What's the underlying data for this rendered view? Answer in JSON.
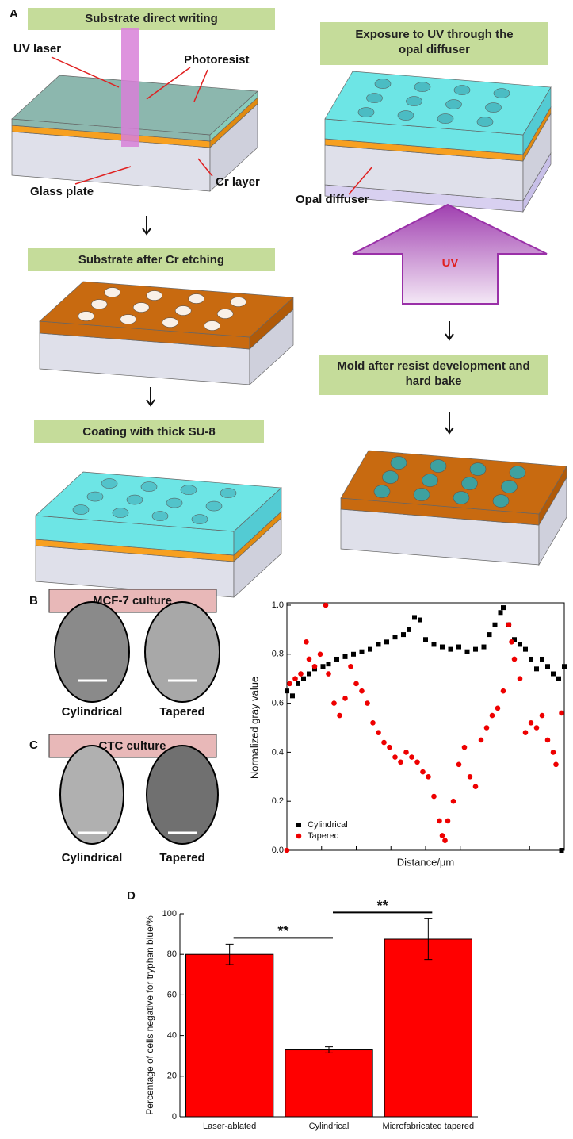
{
  "panel_labels": [
    "A",
    "B",
    "C",
    "D"
  ],
  "diagram": {
    "steps": [
      "Substrate direct writing",
      "Exposure to UV through the opal diffuser",
      "Substrate after Cr etching",
      "Mold after resist development and hard bake",
      "Coating with thick SU-8"
    ],
    "labels": {
      "uv_laser": "UV laser",
      "photoresist": "Photoresist",
      "glass_plate": "Glass plate",
      "cr_layer": "Cr layer",
      "opal_diffuser": "Opal diffuser",
      "uv": "UV"
    }
  },
  "micrographs": {
    "mcf7": "MCF-7 culture",
    "ctc": "CTC culture",
    "cylindrical": "Cylindrical",
    "tapered": "Tapered"
  },
  "chart_data": [
    {
      "type": "scatter",
      "xlabel": "Distance/μm",
      "ylabel": "Normalized gray value",
      "ylim": [
        0,
        1
      ],
      "xlim": [
        0,
        100
      ],
      "yticks": [
        {
          "value": 0,
          "label": "0.0"
        },
        {
          "value": 0.2,
          "label": "0.2"
        },
        {
          "value": 0.4,
          "label": "0.4"
        },
        {
          "value": 0.6,
          "label": "0.6"
        },
        {
          "value": 0.8,
          "label": "0.8"
        },
        {
          "value": 1,
          "label": "1.0"
        }
      ],
      "legend": "lower left",
      "series": [
        {
          "name": "Cylindrical",
          "color": "#000000",
          "marker": "square",
          "x": [
            0,
            2,
            4,
            6,
            8,
            10,
            13,
            15,
            18,
            21,
            24,
            27,
            30,
            33,
            36,
            39,
            42,
            44,
            46,
            48,
            50,
            53,
            56,
            59,
            62,
            65,
            68,
            71,
            73,
            75,
            77,
            78,
            80,
            82,
            84,
            86,
            88,
            90,
            92,
            94,
            96,
            98,
            99,
            100
          ],
          "values": [
            0.65,
            0.63,
            0.68,
            0.7,
            0.72,
            0.74,
            0.75,
            0.76,
            0.78,
            0.79,
            0.8,
            0.81,
            0.82,
            0.84,
            0.85,
            0.87,
            0.88,
            0.9,
            0.95,
            0.94,
            0.86,
            0.84,
            0.83,
            0.82,
            0.83,
            0.81,
            0.82,
            0.83,
            0.88,
            0.92,
            0.97,
            0.99,
            0.92,
            0.86,
            0.84,
            0.82,
            0.78,
            0.74,
            0.78,
            0.75,
            0.72,
            0.7,
            0,
            0.75
          ]
        },
        {
          "name": "Tapered",
          "color": "#ee0000",
          "marker": "circle",
          "x": [
            0,
            1,
            3,
            5,
            7,
            8,
            10,
            12,
            14,
            15,
            17,
            19,
            21,
            23,
            25,
            27,
            29,
            31,
            33,
            35,
            37,
            39,
            41,
            43,
            45,
            47,
            49,
            51,
            53,
            55,
            56,
            57,
            58,
            60,
            62,
            64,
            66,
            68,
            70,
            72,
            74,
            76,
            78,
            80,
            81,
            82,
            84,
            86,
            88,
            90,
            92,
            94,
            96,
            97,
            99
          ],
          "values": [
            0,
            0.68,
            0.7,
            0.72,
            0.85,
            0.78,
            0.75,
            0.8,
            1.0,
            0.72,
            0.6,
            0.55,
            0.62,
            0.75,
            0.68,
            0.65,
            0.6,
            0.52,
            0.48,
            0.44,
            0.42,
            0.38,
            0.36,
            0.4,
            0.38,
            0.36,
            0.32,
            0.3,
            0.22,
            0.12,
            0.06,
            0.04,
            0.12,
            0.2,
            0.35,
            0.42,
            0.3,
            0.26,
            0.45,
            0.5,
            0.55,
            0.58,
            0.65,
            0.92,
            0.85,
            0.78,
            0.7,
            0.48,
            0.52,
            0.5,
            0.55,
            0.45,
            0.4,
            0.35,
            0.56
          ]
        }
      ]
    },
    {
      "type": "bar",
      "ylabel": "Percentage of cells negative for tryphan blue/%",
      "ylim": [
        0,
        100
      ],
      "yticks": [
        0,
        20,
        40,
        60,
        80,
        100
      ],
      "categories": [
        "Laser-ablated",
        "Cylindrical",
        "Microfabricated tapered"
      ],
      "values": [
        80,
        33,
        87.5
      ],
      "errors": [
        5,
        1.5,
        10
      ],
      "color": "#ff0000",
      "annotations": [
        {
          "text": "**",
          "between": [
            0,
            1
          ]
        },
        {
          "text": "**",
          "between": [
            1,
            2
          ]
        }
      ]
    }
  ]
}
